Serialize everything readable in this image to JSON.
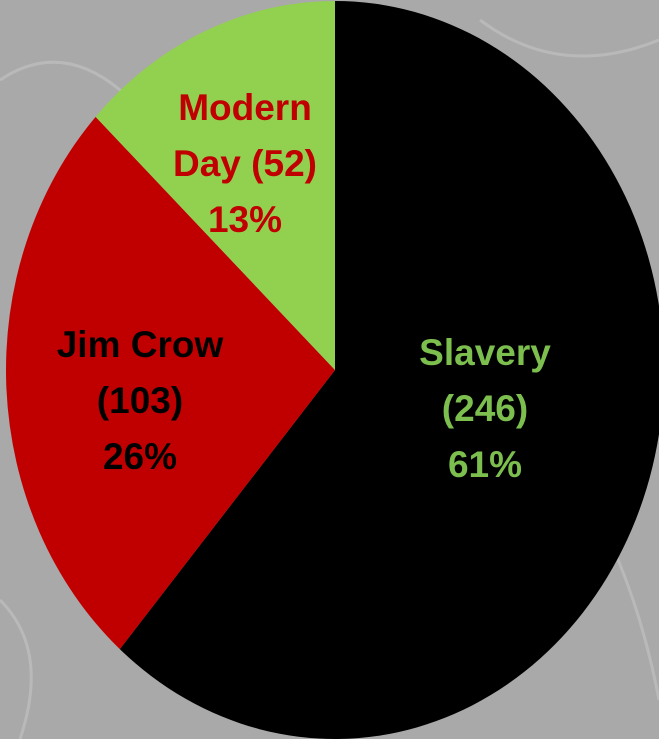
{
  "chart_data": {
    "type": "pie",
    "categories": [
      "Slavery",
      "Jim Crow",
      "Modern Day"
    ],
    "values": [
      246,
      103,
      52
    ],
    "value_labels": [
      "(246)",
      "(103)",
      "(52)"
    ],
    "percent_labels": [
      "61%",
      "26%",
      "13%"
    ],
    "colors": [
      "#000000",
      "#c00000",
      "#92d050"
    ],
    "label_colors": [
      "#7cbf4e",
      "#000000",
      "#c00000"
    ]
  }
}
